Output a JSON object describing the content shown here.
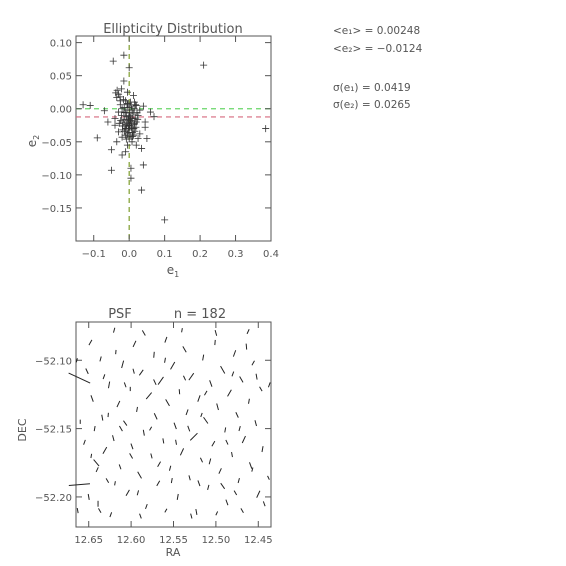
{
  "chart_data": [
    {
      "type": "scatter",
      "title": "Ellipticity Distribution",
      "xlabel": "e1",
      "ylabel": "e2",
      "xlim": [
        -0.15,
        0.4
      ],
      "ylim": [
        -0.2,
        0.11
      ],
      "xticks": [
        -0.1,
        0.0,
        0.1,
        0.2,
        0.3,
        0.4
      ],
      "xtick_labels": [
        "−0.1",
        "0.0",
        "0.1",
        "0.2",
        "0.3",
        "0.4"
      ],
      "yticks": [
        0.1,
        0.05,
        0.0,
        -0.05,
        -0.1,
        -0.15
      ],
      "ytick_labels": [
        "0.10",
        "0.05",
        "0.00",
        "−0.05",
        "−0.10",
        "−0.15"
      ],
      "marker": "plus",
      "reference_lines": [
        {
          "axis": "x",
          "value": 0.0,
          "color": "#7f9d2c",
          "style": "dashed"
        },
        {
          "axis": "y",
          "value": 0.0,
          "color": "#67d667",
          "style": "dashed"
        },
        {
          "axis": "y",
          "value": -0.0124,
          "color": "#d6697d",
          "style": "dashed"
        }
      ],
      "points": [
        [
          -0.13,
          0.006
        ],
        [
          -0.11,
          0.005
        ],
        [
          -0.09,
          -0.044
        ],
        [
          -0.07,
          -0.003
        ],
        [
          -0.06,
          -0.02
        ],
        [
          -0.05,
          -0.093
        ],
        [
          -0.05,
          -0.062
        ],
        [
          -0.045,
          0.072
        ],
        [
          -0.04,
          -0.025
        ],
        [
          -0.035,
          0.017
        ],
        [
          -0.03,
          -0.035
        ],
        [
          -0.03,
          -0.005
        ],
        [
          -0.025,
          0.012
        ],
        [
          -0.02,
          -0.043
        ],
        [
          -0.02,
          -0.07
        ],
        [
          -0.015,
          0.081
        ],
        [
          -0.015,
          0.042
        ],
        [
          -0.01,
          0.012
        ],
        [
          -0.01,
          -0.03
        ],
        [
          -0.005,
          -0.055
        ],
        [
          0.0,
          0.062
        ],
        [
          0.0,
          -0.025
        ],
        [
          0.005,
          -0.09
        ],
        [
          0.005,
          -0.105
        ],
        [
          0.01,
          -0.042
        ],
        [
          0.015,
          -0.022
        ],
        [
          0.02,
          0.005
        ],
        [
          0.025,
          -0.01
        ],
        [
          0.03,
          -0.038
        ],
        [
          0.035,
          -0.123
        ],
        [
          0.04,
          -0.085
        ],
        [
          0.045,
          -0.02
        ],
        [
          0.05,
          -0.045
        ],
        [
          0.07,
          -0.012
        ],
        [
          0.1,
          -0.168
        ],
        [
          0.21,
          0.066
        ],
        [
          0.385,
          -0.03
        ],
        [
          0.06,
          -0.005
        ],
        [
          0.045,
          -0.028
        ],
        [
          -0.04,
          -0.015
        ],
        [
          -0.025,
          0.006
        ],
        [
          0.015,
          0.01
        ],
        [
          0.02,
          -0.055
        ],
        [
          -0.01,
          -0.065
        ],
        [
          0.03,
          -0.002
        ],
        [
          -0.035,
          -0.05
        ],
        [
          0.04,
          0.004
        ],
        [
          -0.015,
          -0.005
        ],
        [
          0.008,
          -0.03
        ],
        [
          0.012,
          0.02
        ],
        [
          -0.02,
          0.0
        ],
        [
          0.025,
          -0.045
        ],
        [
          -0.005,
          0.025
        ],
        [
          0.035,
          -0.06
        ],
        [
          -0.028,
          -0.022
        ],
        [
          0.0,
          -0.01
        ],
        [
          0.004,
          -0.018
        ],
        [
          -0.004,
          -0.022
        ],
        [
          0.01,
          -0.015
        ],
        [
          -0.008,
          -0.012
        ],
        [
          0.006,
          -0.028
        ],
        [
          -0.012,
          -0.026
        ],
        [
          0.014,
          -0.024
        ],
        [
          -0.002,
          -0.032
        ],
        [
          0.002,
          -0.006
        ],
        [
          -0.006,
          -0.002
        ],
        [
          0.008,
          -0.002
        ],
        [
          -0.014,
          -0.016
        ],
        [
          0.016,
          -0.034
        ],
        [
          0.0,
          -0.036
        ],
        [
          -0.01,
          -0.04
        ],
        [
          0.012,
          -0.04
        ],
        [
          -0.018,
          -0.032
        ],
        [
          0.02,
          -0.02
        ],
        [
          -0.022,
          -0.01
        ],
        [
          0.022,
          -0.006
        ],
        [
          0.0,
          0.002
        ],
        [
          -0.004,
          0.006
        ],
        [
          0.004,
          0.01
        ],
        [
          -0.016,
          0.014
        ],
        [
          0.018,
          0.006
        ],
        [
          -0.008,
          -0.046
        ],
        [
          0.008,
          -0.05
        ],
        [
          0.003,
          -0.014
        ],
        [
          -0.003,
          -0.016
        ],
        [
          0.007,
          -0.02
        ],
        [
          -0.007,
          -0.024
        ],
        [
          0.011,
          -0.008
        ],
        [
          -0.011,
          -0.006
        ],
        [
          0.001,
          -0.026
        ],
        [
          -0.001,
          -0.012
        ],
        [
          0.013,
          -0.03
        ],
        [
          -0.013,
          -0.034
        ],
        [
          0.017,
          -0.014
        ],
        [
          -0.017,
          -0.02
        ],
        [
          0.009,
          -0.036
        ],
        [
          -0.009,
          -0.03
        ],
        [
          0.005,
          -0.042
        ],
        [
          -0.005,
          -0.038
        ],
        [
          0.019,
          -0.028
        ],
        [
          -0.019,
          -0.026
        ],
        [
          0.002,
          -0.02
        ],
        [
          -0.002,
          -0.018
        ],
        [
          0.024,
          -0.016
        ],
        [
          -0.024,
          -0.018
        ],
        [
          0.006,
          0.004
        ],
        [
          -0.006,
          0.008
        ],
        [
          0.014,
          0.0
        ],
        [
          -0.014,
          0.002
        ],
        [
          0.0,
          -0.044
        ],
        [
          -0.03,
          0.022
        ],
        [
          -0.034,
          0.028
        ],
        [
          -0.026,
          0.018
        ],
        [
          -0.038,
          0.024
        ],
        [
          -0.022,
          0.03
        ]
      ]
    },
    {
      "type": "scatter",
      "title": "PSF",
      "annotation": "n = 182",
      "xlabel": "RA",
      "ylabel": "DEC",
      "xlim": [
        12.665,
        12.435
      ],
      "ylim": [
        -52.222,
        -52.072
      ],
      "xticks": [
        12.65,
        12.6,
        12.55,
        12.5,
        12.45
      ],
      "xtick_labels": [
        "12.65",
        "12.60",
        "12.55",
        "12.50",
        "12.45"
      ],
      "yticks": [
        -52.1,
        -52.15,
        -52.2
      ],
      "ytick_labels": [
        "−52.10",
        "−52.15",
        "−52.20"
      ],
      "marker": "whisker",
      "whiskers": [
        [
          12.661,
          -52.113,
          0.028,
          -25
        ],
        [
          12.661,
          -52.191,
          0.025,
          5
        ],
        [
          12.648,
          -52.087,
          0.007,
          60
        ],
        [
          12.646,
          -52.128,
          0.008,
          -70
        ],
        [
          12.643,
          -52.15,
          0.006,
          80
        ],
        [
          12.641,
          -52.175,
          0.01,
          -50
        ],
        [
          12.639,
          -52.205,
          0.007,
          90
        ],
        [
          12.636,
          -52.099,
          0.006,
          75
        ],
        [
          12.634,
          -52.142,
          0.007,
          -80
        ],
        [
          12.631,
          -52.166,
          0.009,
          60
        ],
        [
          12.628,
          -52.188,
          0.006,
          -60
        ],
        [
          12.626,
          -52.118,
          0.008,
          80
        ],
        [
          12.624,
          -52.213,
          0.006,
          70
        ],
        [
          12.621,
          -52.157,
          0.007,
          -75
        ],
        [
          12.618,
          -52.094,
          0.005,
          85
        ],
        [
          12.615,
          -52.132,
          0.008,
          65
        ],
        [
          12.613,
          -52.178,
          0.006,
          -70
        ],
        [
          12.61,
          -52.103,
          0.009,
          75
        ],
        [
          12.607,
          -52.146,
          0.007,
          -55
        ],
        [
          12.604,
          -52.197,
          0.008,
          60
        ],
        [
          12.601,
          -52.121,
          0.005,
          90
        ],
        [
          12.599,
          -52.163,
          0.007,
          -70
        ],
        [
          12.596,
          -52.088,
          0.008,
          65
        ],
        [
          12.593,
          -52.136,
          0.006,
          80
        ],
        [
          12.59,
          -52.184,
          0.009,
          -60
        ],
        [
          12.588,
          -52.109,
          0.008,
          55
        ],
        [
          12.585,
          -52.153,
          0.007,
          -80
        ],
        [
          12.582,
          -52.207,
          0.006,
          70
        ],
        [
          12.579,
          -52.126,
          0.01,
          50
        ],
        [
          12.576,
          -52.17,
          0.006,
          -75
        ],
        [
          12.573,
          -52.096,
          0.007,
          85
        ],
        [
          12.571,
          -52.141,
          0.008,
          -65
        ],
        [
          12.568,
          -52.19,
          0.007,
          60
        ],
        [
          12.565,
          -52.115,
          0.011,
          55
        ],
        [
          12.562,
          -52.159,
          0.006,
          -80
        ],
        [
          12.559,
          -52.085,
          0.007,
          70
        ],
        [
          12.557,
          -52.131,
          0.009,
          -60
        ],
        [
          12.554,
          -52.179,
          0.006,
          75
        ],
        [
          12.551,
          -52.104,
          0.01,
          60
        ],
        [
          12.548,
          -52.148,
          0.008,
          -70
        ],
        [
          12.545,
          -52.2,
          0.007,
          80
        ],
        [
          12.543,
          -52.123,
          0.006,
          -85
        ],
        [
          12.54,
          -52.167,
          0.009,
          65
        ],
        [
          12.537,
          -52.092,
          0.008,
          -60
        ],
        [
          12.534,
          -52.138,
          0.007,
          70
        ],
        [
          12.531,
          -52.186,
          0.006,
          -75
        ],
        [
          12.529,
          -52.112,
          0.01,
          55
        ],
        [
          12.526,
          -52.156,
          0.012,
          45
        ],
        [
          12.523,
          -52.211,
          0.007,
          -80
        ],
        [
          12.52,
          -52.128,
          0.008,
          70
        ],
        [
          12.517,
          -52.173,
          0.006,
          -65
        ],
        [
          12.515,
          -52.098,
          0.007,
          80
        ],
        [
          12.512,
          -52.144,
          0.009,
          -55
        ],
        [
          12.509,
          -52.193,
          0.006,
          75
        ],
        [
          12.506,
          -52.117,
          0.008,
          -70
        ],
        [
          12.503,
          -52.161,
          0.007,
          60
        ],
        [
          12.501,
          -52.087,
          0.006,
          85
        ],
        [
          12.498,
          -52.134,
          0.008,
          -75
        ],
        [
          12.495,
          -52.181,
          0.007,
          65
        ],
        [
          12.492,
          -52.107,
          0.01,
          -60
        ],
        [
          12.489,
          -52.151,
          0.006,
          80
        ],
        [
          12.487,
          -52.204,
          0.007,
          -70
        ],
        [
          12.484,
          -52.124,
          0.009,
          60
        ],
        [
          12.481,
          -52.169,
          0.006,
          -80
        ],
        [
          12.478,
          -52.095,
          0.008,
          70
        ],
        [
          12.475,
          -52.14,
          0.007,
          -65
        ],
        [
          12.473,
          -52.188,
          0.006,
          75
        ],
        [
          12.47,
          -52.114,
          0.008,
          -60
        ],
        [
          12.467,
          -52.158,
          0.009,
          65
        ],
        [
          12.464,
          -52.09,
          0.007,
          -85
        ],
        [
          12.461,
          -52.13,
          0.006,
          80
        ],
        [
          12.459,
          -52.177,
          0.008,
          -70
        ],
        [
          12.456,
          -52.102,
          0.006,
          60
        ],
        [
          12.453,
          -52.146,
          0.007,
          -75
        ],
        [
          12.45,
          -52.198,
          0.009,
          65
        ],
        [
          12.447,
          -52.121,
          0.006,
          -60
        ],
        [
          12.445,
          -52.165,
          0.007,
          80
        ],
        [
          12.443,
          -52.205,
          0.006,
          -70
        ],
        [
          12.655,
          -52.16,
          0.006,
          70
        ],
        [
          12.652,
          -52.108,
          0.007,
          -65
        ],
        [
          12.62,
          -52.078,
          0.006,
          75
        ],
        [
          12.585,
          -52.08,
          0.007,
          -60
        ],
        [
          12.54,
          -52.078,
          0.005,
          80
        ],
        [
          12.5,
          -52.08,
          0.007,
          -75
        ],
        [
          12.462,
          -52.079,
          0.006,
          65
        ],
        [
          12.66,
          -52.145,
          0.005,
          90
        ],
        [
          12.65,
          -52.2,
          0.007,
          -80
        ],
        [
          12.632,
          -52.112,
          0.006,
          70
        ],
        [
          12.612,
          -52.15,
          0.007,
          -60
        ],
        [
          12.592,
          -52.197,
          0.006,
          75
        ],
        [
          12.572,
          -52.116,
          0.007,
          -65
        ],
        [
          12.552,
          -52.188,
          0.006,
          80
        ],
        [
          12.532,
          -52.15,
          0.007,
          -70
        ],
        [
          12.512,
          -52.124,
          0.006,
          60
        ],
        [
          12.492,
          -52.192,
          0.008,
          -55
        ],
        [
          12.472,
          -52.15,
          0.006,
          75
        ],
        [
          12.452,
          -52.112,
          0.007,
          -80
        ],
        [
          12.64,
          -52.18,
          0.006,
          65
        ],
        [
          12.6,
          -52.17,
          0.007,
          -60
        ],
        [
          12.56,
          -52.1,
          0.006,
          80
        ],
        [
          12.52,
          -52.19,
          0.007,
          -70
        ],
        [
          12.48,
          -52.11,
          0.006,
          70
        ],
        [
          12.627,
          -52.14,
          0.005,
          85
        ],
        [
          12.597,
          -52.108,
          0.006,
          -75
        ],
        [
          12.567,
          -52.176,
          0.007,
          60
        ],
        [
          12.537,
          -52.113,
          0.006,
          -65
        ],
        [
          12.507,
          -52.174,
          0.007,
          75
        ],
        [
          12.477,
          -52.197,
          0.006,
          -60
        ],
        [
          12.647,
          -52.17,
          0.005,
          80
        ],
        [
          12.607,
          -52.118,
          0.006,
          -70
        ],
        [
          12.577,
          -52.15,
          0.005,
          60
        ],
        [
          12.547,
          -52.16,
          0.006,
          -80
        ],
        [
          12.517,
          -52.14,
          0.005,
          70
        ],
        [
          12.487,
          -52.16,
          0.006,
          -65
        ],
        [
          12.457,
          -52.18,
          0.005,
          75
        ],
        [
          12.637,
          -52.21,
          0.006,
          -60
        ],
        [
          12.619,
          -52.19,
          0.005,
          80
        ],
        [
          12.589,
          -52.214,
          0.006,
          -70
        ],
        [
          12.559,
          -52.21,
          0.005,
          60
        ],
        [
          12.529,
          -52.214,
          0.006,
          -75
        ],
        [
          12.499,
          -52.212,
          0.005,
          65
        ],
        [
          12.469,
          -52.21,
          0.006,
          -60
        ],
        [
          12.664,
          -52.1,
          0.005,
          75
        ],
        [
          12.663,
          -52.21,
          0.006,
          -80
        ],
        [
          12.437,
          -52.118,
          0.006,
          70
        ],
        [
          12.438,
          -52.186,
          0.005,
          -65
        ]
      ]
    }
  ],
  "stats": {
    "mean_e1": "<e₁> = 0.00248",
    "mean_e2": "<e₂> = −0.0124",
    "sigma_e1": "σ(e₁) = 0.0419",
    "sigma_e2": "σ(e₂) = 0.0265"
  }
}
